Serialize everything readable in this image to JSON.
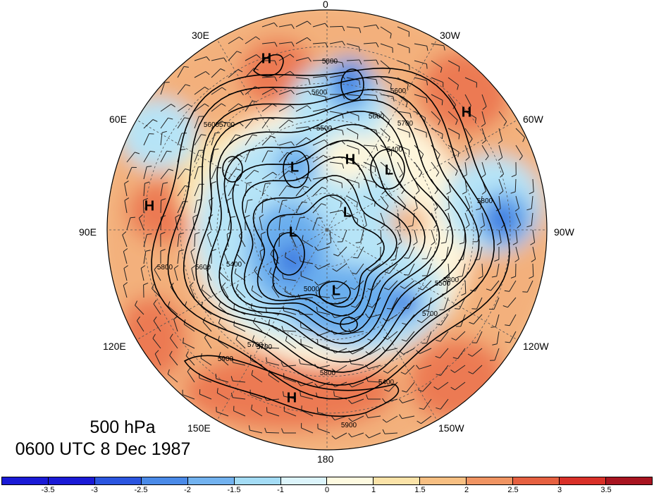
{
  "map": {
    "projection": "north-polar-stereographic",
    "longitude_labels": [
      "0",
      "30W",
      "60W",
      "90W",
      "120W",
      "150W",
      "180",
      "150E",
      "120E",
      "90E",
      "60E",
      "30E"
    ],
    "highs": [
      "H",
      "H",
      "H",
      "H",
      "H"
    ],
    "lows": [
      "L",
      "L",
      "L",
      "L",
      "L"
    ],
    "contour_labels": [
      "5800",
      "5600",
      "5600",
      "5700",
      "5500",
      "5400",
      "5700",
      "5600",
      "5500",
      "5400",
      "5700",
      "5800",
      "5000",
      "5400",
      "5600",
      "5800",
      "5700",
      "5900",
      "5800",
      "5700",
      "5900",
      "5800",
      "5600"
    ]
  },
  "title": {
    "level": "500 hPa",
    "time": "0600 UTC 8 Dec 1987"
  },
  "colorbar": {
    "colors": [
      "#1a1ad6",
      "#2b55e0",
      "#4a8ae8",
      "#72b2ef",
      "#a4dcf5",
      "#dcf4fb",
      "#fefae0",
      "#fbe3a8",
      "#f7bf82",
      "#f09462",
      "#e66040",
      "#d93028",
      "#a81420"
    ],
    "labels": [
      "-3.5",
      "-3",
      "-2.5",
      "-2",
      "-1.5",
      "-1",
      "0",
      "1",
      "1.5",
      "2",
      "2.5",
      "3",
      "3.5"
    ]
  },
  "anomaly_colors": {
    "neg_strong": "#3a78e0",
    "neg_mid": "#6aaeee",
    "neg_weak": "#b6e4f7",
    "near_zero": "#fef6dc",
    "pos_weak": "#fbe0a6",
    "pos_mid": "#f3b07c",
    "pos_strong": "#ec7a52"
  }
}
